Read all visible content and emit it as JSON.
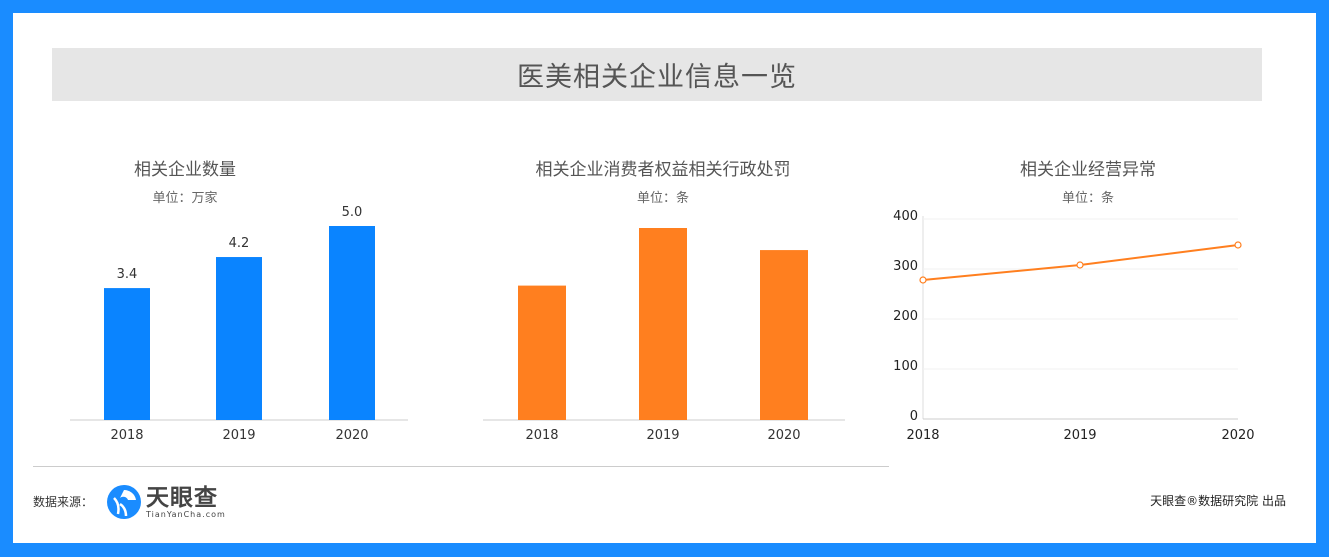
{
  "page_title": "医美相关企业信息一览",
  "colors": {
    "border": "#1a8cff",
    "blue_bar": "#0a84ff",
    "orange": "#ff7f1f"
  },
  "chart_data": [
    {
      "type": "bar",
      "title": "相关企业数量",
      "unit": "单位：万家",
      "categories": [
        "2018",
        "2019",
        "2020"
      ],
      "values": [
        3.4,
        4.2,
        5.0
      ],
      "data_labels": [
        "3.4",
        "4.2",
        "5.0"
      ],
      "color": "#0a84ff"
    },
    {
      "type": "bar",
      "title": "相关企业消费者权益相关行政处罚",
      "unit": "单位：条",
      "categories": [
        "2018",
        "2019",
        "2020"
      ],
      "values_relative_to_max": [
        0.7,
        1.0,
        0.885
      ],
      "color": "#ff7f1f"
    },
    {
      "type": "line",
      "title": "相关企业经营异常",
      "unit": "单位：条",
      "categories": [
        "2018",
        "2019",
        "2020"
      ],
      "values": [
        278,
        308,
        348
      ],
      "ylim": [
        0,
        400
      ],
      "yticks": [
        "0",
        "100",
        "200",
        "300",
        "400"
      ],
      "grid": true,
      "color": "#ff7f1f"
    }
  ],
  "footer": {
    "source_label": "数据来源：",
    "logo_cn": "天眼查",
    "logo_en": "TianYanCha.com",
    "credit": "天眼查®数据研究院 出品"
  }
}
